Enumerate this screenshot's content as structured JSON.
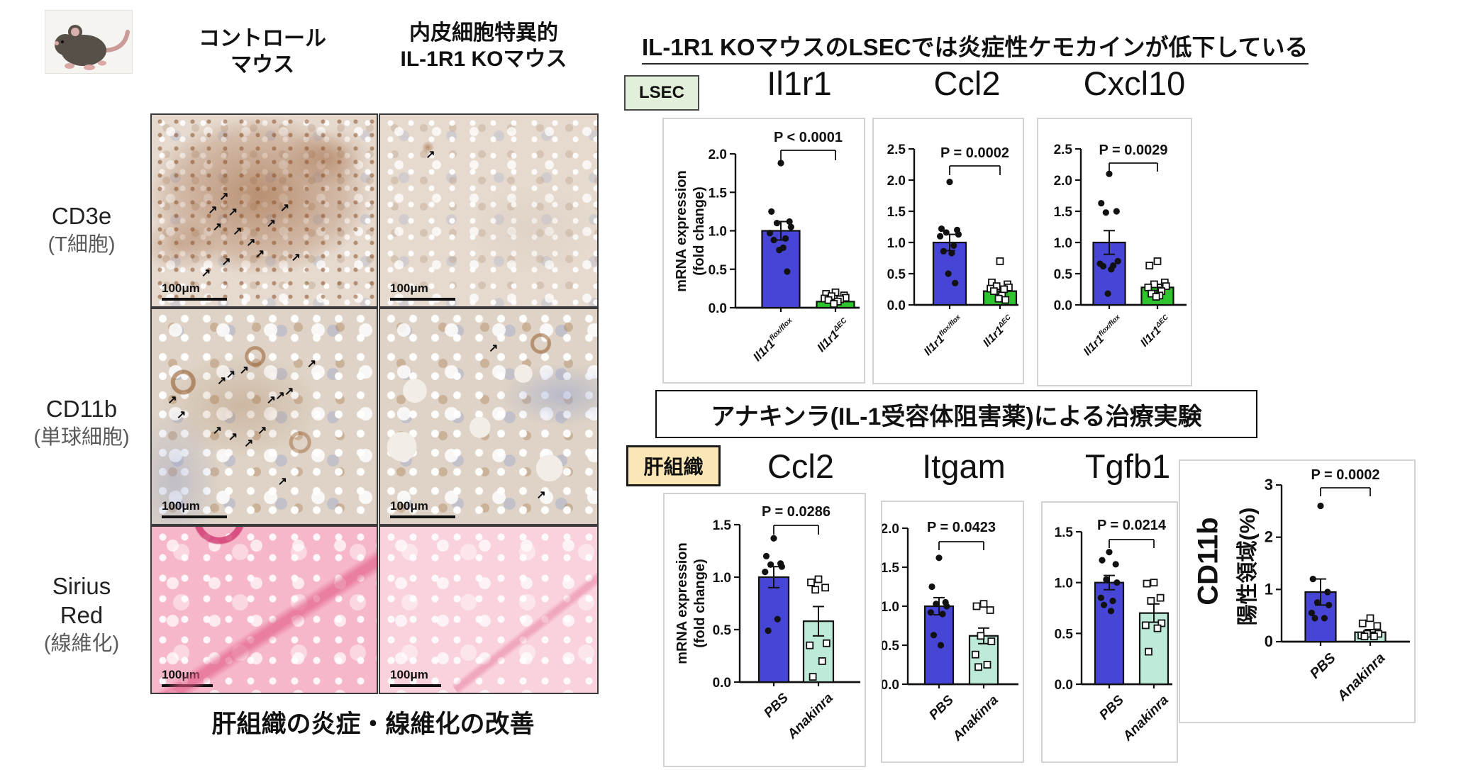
{
  "left_panel": {
    "col_headers": [
      [
        "コントロール",
        "マウス"
      ],
      [
        "内皮細胞特異的",
        "IL-1R1 KOマウス"
      ]
    ],
    "row_labels": [
      {
        "lines": [
          "CD3e"
        ],
        "sub": "(T細胞)"
      },
      {
        "lines": [
          "CD11b"
        ],
        "sub": "(単球細胞)"
      },
      {
        "lines": [
          "Sirius",
          "Red"
        ],
        "sub": "(線維化)"
      }
    ],
    "scale_bar_label": "100μm",
    "caption": "肝組織の炎症・線維化の改善"
  },
  "right_panel": {
    "title": "IL-1R1 KOマウスのLSECでは炎症性ケモカインが低下している",
    "lsec_badge": "LSEC",
    "liver_badge": "肝組織",
    "banner": "アナキンラ(IL-1受容体阻害薬)による治療実験"
  },
  "colors": {
    "bar_blue": "#4745d6",
    "bar_green": "#2ec42e",
    "bar_mint": "#bdebd7",
    "lsec_badge_bg": "#e2efda",
    "liver_badge_bg": "#fbe7b5"
  },
  "chart_data": [
    {
      "id": "il1r1_lsec",
      "type": "bar",
      "title": "Il1r1",
      "ylabel": "mRNA expression (fold change)",
      "ylabel_lines": [
        "mRNA expression",
        "(fold change)"
      ],
      "ylim": [
        0,
        2.0
      ],
      "yticks": [
        "0.0",
        "0.5",
        "1.0",
        "1.5",
        "2.0"
      ],
      "p_label": "P < 0.0001",
      "grid": false,
      "legend": "none",
      "groups": [
        {
          "label_base": "Il1r1",
          "label_sup": "flox/flox",
          "mean": 1.0,
          "sem": 0.12,
          "bar_color": "#4745d6",
          "marker": "circle",
          "points": [
            1.88,
            1.25,
            1.12,
            1.1,
            1.05,
            0.97,
            0.9,
            0.88,
            0.78,
            0.75,
            0.47
          ]
        },
        {
          "label_base": "Il1r1",
          "label_sup": "ΔEC",
          "mean": 0.08,
          "sem": 0.02,
          "bar_color": "#2ec42e",
          "marker": "square",
          "points": [
            0.2,
            0.18,
            0.16,
            0.15,
            0.13,
            0.12,
            0.11,
            0.1,
            0.08,
            0.05
          ]
        }
      ]
    },
    {
      "id": "ccl2_lsec",
      "type": "bar",
      "title": "Ccl2",
      "ylabel": "",
      "ylabel_lines": [],
      "ylim": [
        0,
        2.5
      ],
      "yticks": [
        "0.0",
        "0.5",
        "1.0",
        "1.5",
        "2.0",
        "2.5"
      ],
      "p_label": "P = 0.0002",
      "grid": false,
      "legend": "none",
      "groups": [
        {
          "label_base": "Il1r1",
          "label_sup": "flox/flox",
          "mean": 1.0,
          "sem": 0.13,
          "bar_color": "#4745d6",
          "marker": "circle",
          "points": [
            1.97,
            1.22,
            1.2,
            1.16,
            1.13,
            1.1,
            0.95,
            0.86,
            0.83,
            0.5,
            0.35
          ]
        },
        {
          "label_base": "Il1r1",
          "label_sup": "ΔEC",
          "mean": 0.22,
          "sem": 0.05,
          "bar_color": "#2ec42e",
          "marker": "square",
          "points": [
            0.7,
            0.36,
            0.33,
            0.3,
            0.28,
            0.26,
            0.25,
            0.22,
            0.15,
            0.1,
            0.08
          ]
        }
      ]
    },
    {
      "id": "cxcl10_lsec",
      "type": "bar",
      "title": "Cxcl10",
      "ylabel": "",
      "ylabel_lines": [],
      "ylim": [
        0,
        2.5
      ],
      "yticks": [
        "0.0",
        "0.5",
        "1.0",
        "1.5",
        "2.0",
        "2.5"
      ],
      "p_label": "P = 0.0029",
      "grid": false,
      "legend": "none",
      "groups": [
        {
          "label_base": "Il1r1",
          "label_sup": "flox/flox",
          "mean": 1.0,
          "sem": 0.19,
          "bar_color": "#4745d6",
          "marker": "circle",
          "points": [
            2.1,
            1.63,
            1.5,
            1.48,
            0.7,
            0.66,
            0.63,
            0.62,
            0.57,
            0.18
          ]
        },
        {
          "label_base": "Il1r1",
          "label_sup": "ΔEC",
          "mean": 0.28,
          "sem": 0.05,
          "bar_color": "#2ec42e",
          "marker": "square",
          "points": [
            0.7,
            0.63,
            0.36,
            0.33,
            0.3,
            0.28,
            0.22,
            0.18,
            0.15,
            0.13
          ]
        }
      ]
    },
    {
      "id": "ccl2_liver",
      "type": "bar",
      "title": "Ccl2",
      "ylabel": "mRNA expression (fold change)",
      "ylabel_lines": [
        "mRNA expression",
        "(fold change)"
      ],
      "ylim": [
        0,
        1.5
      ],
      "yticks": [
        "0.0",
        "0.5",
        "1.0",
        "1.5"
      ],
      "p_label": "P = 0.0286",
      "grid": false,
      "legend": "none",
      "groups": [
        {
          "label_base": "PBS",
          "label_sup": "",
          "mean": 1.0,
          "sem": 0.1,
          "bar_color": "#4745d6",
          "marker": "circle",
          "points": [
            1.37,
            1.2,
            1.13,
            1.12,
            1.1,
            1.05,
            0.6,
            0.49
          ]
        },
        {
          "label_base": "Anakinra",
          "label_sup": "",
          "mean": 0.58,
          "sem": 0.14,
          "bar_color": "#bdebd7",
          "marker": "square",
          "points": [
            0.98,
            0.95,
            0.9,
            0.88,
            0.37,
            0.35,
            0.2,
            0.05
          ]
        }
      ]
    },
    {
      "id": "itgam_liver",
      "type": "bar",
      "title": "Itgam",
      "ylabel": "",
      "ylabel_lines": [],
      "ylim": [
        0,
        2.0
      ],
      "yticks": [
        "0.0",
        "0.5",
        "1.0",
        "1.5",
        "2.0"
      ],
      "p_label": "P = 0.0423",
      "grid": false,
      "legend": "none",
      "groups": [
        {
          "label_base": "PBS",
          "label_sup": "",
          "mean": 1.0,
          "sem": 0.11,
          "bar_color": "#4745d6",
          "marker": "circle",
          "points": [
            1.62,
            1.25,
            1.05,
            1.03,
            1.0,
            0.92,
            0.9,
            0.63,
            0.5
          ]
        },
        {
          "label_base": "Anakinra",
          "label_sup": "",
          "mean": 0.62,
          "sem": 0.1,
          "bar_color": "#bdebd7",
          "marker": "square",
          "points": [
            1.03,
            1.0,
            0.95,
            0.62,
            0.55,
            0.38,
            0.25,
            0.22
          ]
        }
      ]
    },
    {
      "id": "tgfb1_liver",
      "type": "bar",
      "title": "Tgfb1",
      "ylabel": "",
      "ylabel_lines": [],
      "ylim": [
        0,
        1.5
      ],
      "yticks": [
        "0.0",
        "0.5",
        "1.0",
        "1.5"
      ],
      "p_label": "P = 0.0214",
      "grid": false,
      "legend": "none",
      "groups": [
        {
          "label_base": "PBS",
          "label_sup": "",
          "mean": 1.0,
          "sem": 0.07,
          "bar_color": "#4745d6",
          "marker": "circle",
          "points": [
            1.3,
            1.22,
            1.18,
            1.03,
            1.0,
            0.85,
            0.82,
            0.78,
            0.72
          ]
        },
        {
          "label_base": "Anakinra",
          "label_sup": "",
          "mean": 0.7,
          "sem": 0.09,
          "bar_color": "#bdebd7",
          "marker": "square",
          "points": [
            1.0,
            0.99,
            0.85,
            0.82,
            0.6,
            0.58,
            0.55,
            0.32
          ]
        }
      ]
    },
    {
      "id": "cd11b_area",
      "type": "bar",
      "title": "",
      "ylabel": "CD11b 陽性領域(%)",
      "ylabel_lines": [
        "CD11b",
        "陽性領域(%)"
      ],
      "ylim": [
        0,
        3
      ],
      "yticks": [
        "0",
        "1",
        "2",
        "3"
      ],
      "p_label": "P = 0.0002",
      "grid": false,
      "legend": "none",
      "groups": [
        {
          "label_base": "PBS",
          "label_sup": "",
          "mean": 0.95,
          "sem": 0.25,
          "bar_color": "#4745d6",
          "marker": "circle",
          "points": [
            2.6,
            1.2,
            0.95,
            0.75,
            0.7,
            0.55,
            0.45,
            0.45
          ]
        },
        {
          "label_base": "Anakinra",
          "label_sup": "",
          "mean": 0.18,
          "sem": 0.05,
          "bar_color": "#bdebd7",
          "marker": "square",
          "points": [
            0.45,
            0.35,
            0.3,
            0.15,
            0.15,
            0.12,
            0.1,
            0.1
          ]
        }
      ]
    }
  ]
}
